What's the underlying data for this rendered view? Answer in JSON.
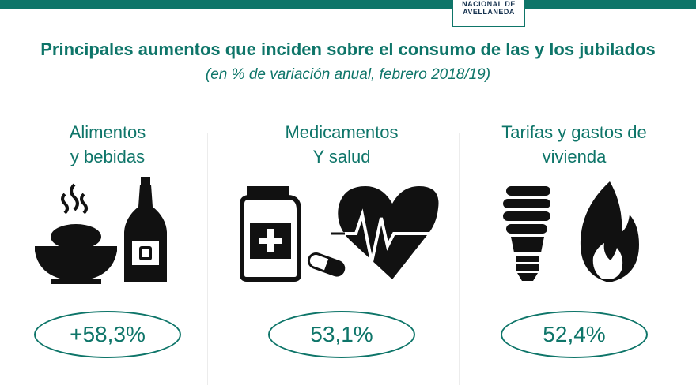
{
  "header": {
    "logo_line1": "NACIONAL DE",
    "logo_line2": "AVELLANEDA"
  },
  "title": "Principales aumentos que inciden sobre el consumo de las y los jubilados",
  "subtitle": "(en % de variación anual, febrero 2018/19)",
  "categories": [
    {
      "title_line1": "Alimentos",
      "title_line2": "y bebidas",
      "value": "+58,3%",
      "icons": [
        "food-bowl-icon",
        "bottle-icon"
      ]
    },
    {
      "title_line1": "Medicamentos",
      "title_line2": "Y salud",
      "value": "53,1%",
      "icons": [
        "medicine-jar-icon",
        "pill-icon",
        "heart-pulse-icon"
      ]
    },
    {
      "title_line1": "Tarifas y gastos de",
      "title_line2": "vivienda",
      "value": "52,4%",
      "icons": [
        "light-bulb-icon",
        "flame-icon"
      ]
    }
  ],
  "colors": {
    "accent": "#0e7569",
    "icon": "#111111"
  }
}
